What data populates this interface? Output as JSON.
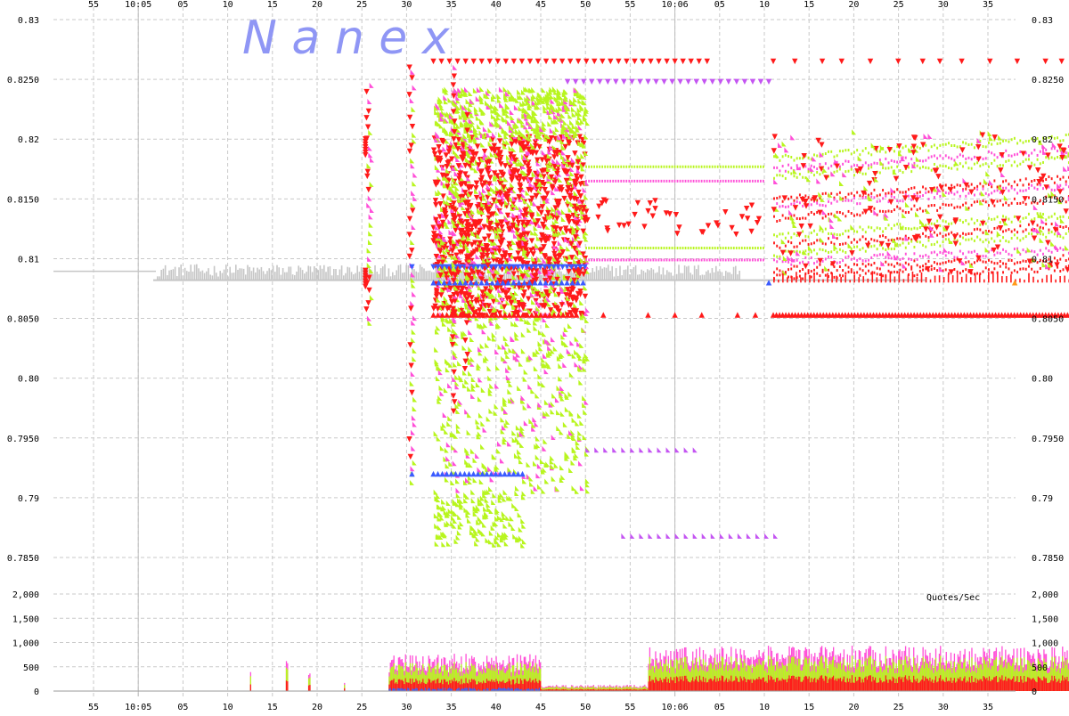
{
  "watermark": "N a n e x",
  "colors": {
    "red": "#ff1a1a",
    "magenta": "#ff4fd8",
    "lime": "#b8f51e",
    "blue": "#3b5bff",
    "violet": "#c455f2",
    "gray": "#c6c6c6",
    "orange": "#ff9a1a"
  },
  "chart_data": [
    {
      "type": "scatter",
      "title": "",
      "xlabel": "",
      "ylabel": "",
      "x_tick_labels": [
        "55",
        "10:05",
        "05",
        "10",
        "15",
        "20",
        "25",
        "30",
        "35",
        "40",
        "45",
        "50",
        "55",
        "10:06",
        "05",
        "10",
        "15",
        "20",
        "25",
        "30",
        "35"
      ],
      "y_tick_labels": [
        "0.83",
        "0.8250",
        "0.82",
        "0.8150",
        "0.81",
        "0.8050",
        "0.80",
        "0.7950",
        "0.79",
        "0.7850"
      ],
      "ylim": [
        0.7835,
        0.83
      ],
      "series": [
        {
          "color_key": "lime",
          "description_points": "bid/ask triangles"
        },
        {
          "color_key": "magenta",
          "description_points": "bid/ask triangles"
        },
        {
          "color_key": "red",
          "description_points": "bid/ask triangles"
        },
        {
          "color_key": "blue",
          "description_points": "NBBO markers"
        },
        {
          "color_key": "violet",
          "description_points": "quote markers"
        }
      ],
      "levels": {
        "nbbo_line": 0.8082,
        "upper_red_row": 0.8265,
        "violet_row": 0.8248,
        "lower_red_row": 0.8053,
        "blue_low_row": 0.792,
        "violet_low_row_1": 0.794,
        "violet_low_row_2": 0.7868
      }
    },
    {
      "type": "bar",
      "title": "Quotes/Sec",
      "y_tick_labels": [
        "2,000",
        "1,500",
        "1,000",
        "500",
        "0"
      ],
      "ylim": [
        0,
        2000
      ],
      "x_tick_labels": [
        "55",
        "10:05",
        "05",
        "10",
        "15",
        "20",
        "25",
        "30",
        "35",
        "40",
        "45",
        "50",
        "55",
        "10:06",
        "05",
        "10",
        "15",
        "20",
        "25",
        "30",
        "35"
      ],
      "segments": [
        {
          "start_sec": 17.5,
          "end_sec": 17.6,
          "level": 600
        },
        {
          "start_sec": 21.5,
          "end_sec": 21.7,
          "level": 900
        },
        {
          "start_sec": 24,
          "end_sec": 24.2,
          "level": 400
        },
        {
          "start_sec": 28,
          "end_sec": 28.1,
          "level": 300
        },
        {
          "start_sec": 33,
          "end_sec": 50,
          "level": 700
        },
        {
          "start_sec": 50,
          "end_sec": 62,
          "level": 120
        },
        {
          "start_sec": 62,
          "end_sec": 142,
          "level": 850
        }
      ]
    }
  ]
}
